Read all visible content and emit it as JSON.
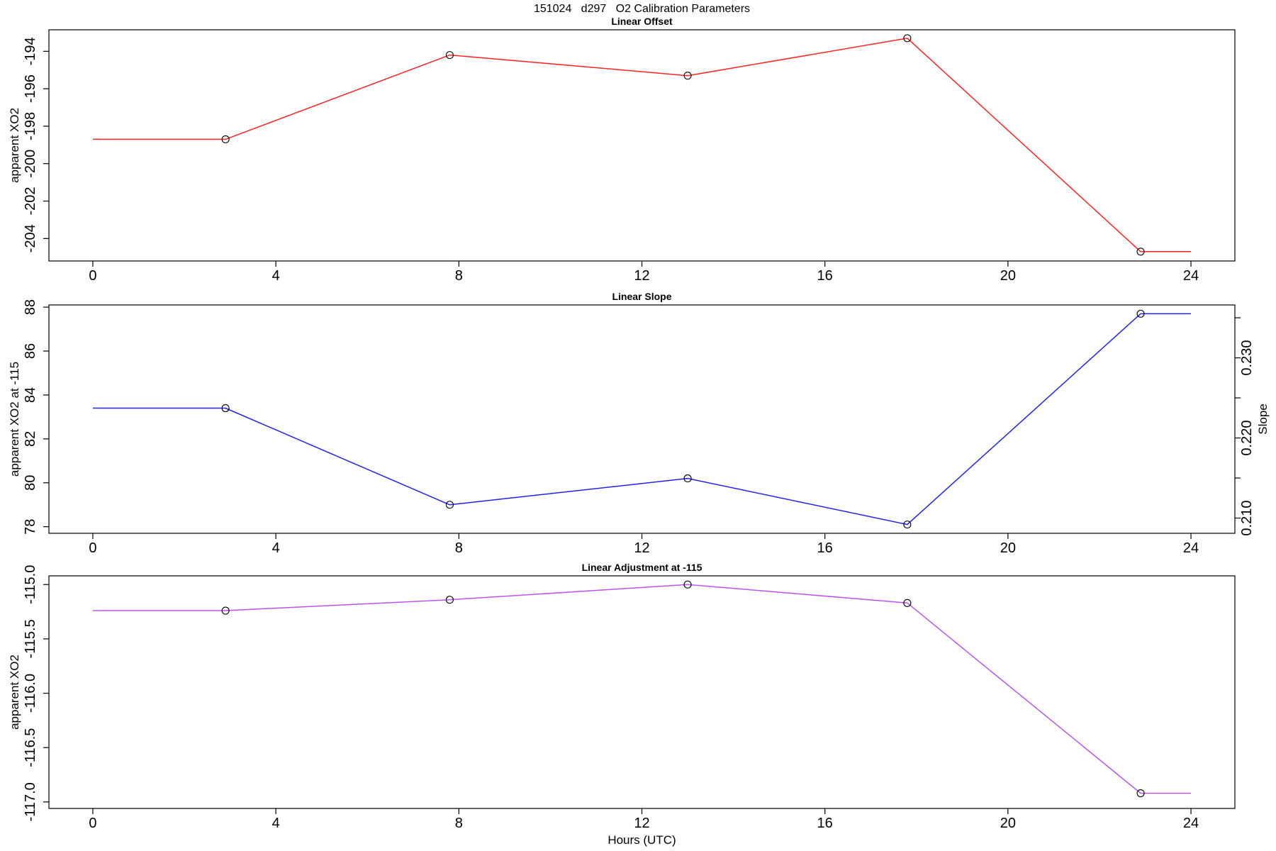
{
  "figure_title": "151024   d297   O2 Calibration Parameters",
  "x_axis": {
    "label": "Hours (UTC)",
    "ticks": [
      0,
      4,
      8,
      12,
      16,
      20,
      24
    ],
    "tick_labels": [
      "0",
      "4",
      "8",
      "12",
      "16",
      "20",
      "24"
    ],
    "xlim": [
      -0.96,
      24.96
    ]
  },
  "chart_data": [
    {
      "name": "linear-offset",
      "type": "line",
      "title": "Linear Offset",
      "ylabel": "apparent XO2",
      "color": "#ff2222",
      "marker": "open-circle",
      "x": [
        2.9,
        7.8,
        13.0,
        17.8,
        22.9
      ],
      "y": [
        -198.7,
        -194.2,
        -195.3,
        -193.3,
        -204.7
      ],
      "line_extension": [
        0,
        24
      ],
      "ylim": [
        -205.2,
        -192.85
      ],
      "yticks": [
        -204,
        -202,
        -200,
        -198,
        -196,
        -194
      ],
      "ytick_labels": [
        "-204",
        "-202",
        "-200",
        "-198",
        "-196",
        "-194"
      ]
    },
    {
      "name": "linear-slope",
      "type": "line",
      "title": "Linear Slope",
      "ylabel": "apparent XO2 at -115",
      "color": "#2222ee",
      "marker": "open-circle",
      "x": [
        2.9,
        7.8,
        13.0,
        17.8,
        22.9
      ],
      "y": [
        83.4,
        79.0,
        80.2,
        78.1,
        87.7
      ],
      "line_extension": [
        0,
        24
      ],
      "ylim": [
        77.7,
        88.1
      ],
      "yticks": [
        78,
        80,
        82,
        84,
        86,
        88
      ],
      "ytick_labels": [
        "78",
        "80",
        "82",
        "84",
        "86",
        "88"
      ],
      "right_axis": {
        "label": "Slope",
        "ylim": [
          0.2081,
          0.2366
        ],
        "ticks": [
          0.21,
          0.215,
          0.22,
          0.225,
          0.23,
          0.235
        ],
        "tick_labels": [
          "0.210",
          "",
          "0.220",
          "",
          "0.230",
          ""
        ]
      }
    },
    {
      "name": "linear-adjustment",
      "type": "line",
      "title": "Linear Adjustment at -115",
      "ylabel": "apparent XO2",
      "xlabel": "Hours (UTC)",
      "color": "#bb55ee",
      "marker": "open-circle",
      "x": [
        2.9,
        7.8,
        13.0,
        17.8,
        22.9
      ],
      "y": [
        -115.24,
        -115.14,
        -115.0,
        -115.17,
        -116.92
      ],
      "line_extension": [
        0,
        24
      ],
      "ylim": [
        -117.06,
        -114.92
      ],
      "yticks": [
        -117.0,
        -116.5,
        -116.0,
        -115.5,
        -115.0
      ],
      "ytick_labels": [
        "-117.0",
        "-116.5",
        "-116.0",
        "-115.5",
        "-115.0"
      ]
    }
  ]
}
